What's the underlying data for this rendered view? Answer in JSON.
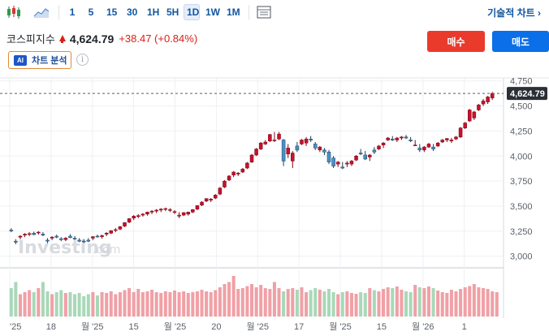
{
  "toolbar": {
    "timeframes": [
      "1",
      "5",
      "15",
      "30",
      "1H",
      "5H",
      "1D",
      "1W",
      "1M"
    ],
    "active_timeframe": "1D",
    "technical_chart_label": "기술적 차트 ›"
  },
  "quote": {
    "name": "코스피지수",
    "price": "4,624.79",
    "change": "+38.47 (+0.84%)",
    "change_color": "#d91e18"
  },
  "actions": {
    "buy_label": "매수",
    "sell_label": "매도",
    "buy_color": "#ea3a2c",
    "sell_color": "#0a6fe8"
  },
  "ai": {
    "badge": "AI",
    "label": "차트 분석"
  },
  "watermark": {
    "brand": "Investing",
    "domain": ".com"
  },
  "chart_data": {
    "type": "candlestick",
    "up_color": "#c8102e",
    "down_color": "#4a90c8",
    "ylim": [
      2900,
      4780
    ],
    "y_ticks": [
      3000,
      3250,
      3500,
      3750,
      4000,
      4250,
      4500,
      4750
    ],
    "y_tick_labels": [
      "3,000",
      "3,250",
      "3,500",
      "3,750",
      "4,000",
      "4,250",
      "4,500",
      "4,750"
    ],
    "x_tick_labels": [
      "'25",
      "18",
      "월 '25",
      "15",
      "월 '25",
      "20",
      "월 '25",
      "17",
      "월 '25",
      "15",
      "월 '26",
      "1"
    ],
    "last_price": 4624.79,
    "last_price_label": "4,624.79",
    "volume_colors": {
      "up": "#f0a0a6",
      "down": "#a8d8b8"
    },
    "candles": [
      [
        3260,
        3280,
        3240,
        3255
      ],
      [
        3150,
        3170,
        3120,
        3140
      ],
      [
        3190,
        3210,
        3170,
        3200
      ],
      [
        3210,
        3230,
        3190,
        3220
      ],
      [
        3220,
        3240,
        3200,
        3225
      ],
      [
        3230,
        3245,
        3210,
        3215
      ],
      [
        3235,
        3250,
        3215,
        3240
      ],
      [
        3220,
        3240,
        3200,
        3210
      ],
      [
        3160,
        3180,
        3130,
        3150
      ],
      [
        3180,
        3200,
        3160,
        3190
      ],
      [
        3200,
        3215,
        3180,
        3190
      ],
      [
        3175,
        3190,
        3150,
        3165
      ],
      [
        3165,
        3190,
        3150,
        3180
      ],
      [
        3200,
        3220,
        3180,
        3185
      ],
      [
        3180,
        3200,
        3160,
        3175
      ],
      [
        3160,
        3180,
        3140,
        3150
      ],
      [
        3150,
        3170,
        3130,
        3145
      ],
      [
        3160,
        3180,
        3140,
        3150
      ],
      [
        3180,
        3200,
        3160,
        3195
      ],
      [
        3200,
        3215,
        3185,
        3195
      ],
      [
        3195,
        3215,
        3175,
        3205
      ],
      [
        3220,
        3240,
        3200,
        3230
      ],
      [
        3230,
        3260,
        3220,
        3255
      ],
      [
        3260,
        3280,
        3240,
        3265
      ],
      [
        3270,
        3300,
        3260,
        3295
      ],
      [
        3300,
        3340,
        3290,
        3335
      ],
      [
        3340,
        3380,
        3330,
        3375
      ],
      [
        3380,
        3410,
        3360,
        3400
      ],
      [
        3395,
        3420,
        3380,
        3405
      ],
      [
        3410,
        3430,
        3395,
        3420
      ],
      [
        3420,
        3445,
        3405,
        3440
      ],
      [
        3440,
        3460,
        3420,
        3450
      ],
      [
        3450,
        3470,
        3430,
        3460
      ],
      [
        3460,
        3480,
        3440,
        3470
      ],
      [
        3470,
        3485,
        3450,
        3475
      ],
      [
        3460,
        3480,
        3440,
        3465
      ],
      [
        3440,
        3460,
        3420,
        3445
      ],
      [
        3400,
        3440,
        3380,
        3410
      ],
      [
        3410,
        3440,
        3400,
        3435
      ],
      [
        3420,
        3445,
        3405,
        3440
      ],
      [
        3440,
        3470,
        3430,
        3465
      ],
      [
        3470,
        3510,
        3460,
        3505
      ],
      [
        3510,
        3550,
        3500,
        3540
      ],
      [
        3550,
        3580,
        3540,
        3575
      ],
      [
        3560,
        3580,
        3540,
        3570
      ],
      [
        3580,
        3620,
        3570,
        3610
      ],
      [
        3620,
        3690,
        3610,
        3680
      ],
      [
        3690,
        3760,
        3680,
        3750
      ],
      [
        3760,
        3810,
        3750,
        3800
      ],
      [
        3810,
        3850,
        3790,
        3840
      ],
      [
        3820,
        3840,
        3800,
        3830
      ],
      [
        3840,
        3880,
        3830,
        3870
      ],
      [
        3880,
        3940,
        3870,
        3930
      ],
      [
        3940,
        4020,
        3930,
        4010
      ],
      [
        4010,
        4080,
        4000,
        4070
      ],
      [
        4070,
        4140,
        4060,
        4130
      ],
      [
        4120,
        4160,
        4110,
        4140
      ],
      [
        4150,
        4220,
        4140,
        4215
      ],
      [
        4160,
        4240,
        4140,
        4160
      ],
      [
        4170,
        4240,
        4160,
        4220
      ],
      [
        4160,
        4170,
        3900,
        3950
      ],
      [
        4020,
        4120,
        3980,
        4080
      ],
      [
        3950,
        4050,
        3880,
        4030
      ],
      [
        4100,
        4140,
        4040,
        4060
      ],
      [
        4120,
        4170,
        4110,
        4160
      ],
      [
        4130,
        4190,
        4100,
        4170
      ],
      [
        4170,
        4200,
        4140,
        4160
      ],
      [
        4120,
        4140,
        4060,
        4080
      ],
      [
        4060,
        4100,
        4040,
        4090
      ],
      [
        4060,
        4080,
        4010,
        4040
      ],
      [
        4040,
        4060,
        3920,
        3940
      ],
      [
        3980,
        4000,
        3880,
        3900
      ],
      [
        3920,
        3950,
        3890,
        3940
      ],
      [
        3890,
        3940,
        3870,
        3880
      ],
      [
        3920,
        3950,
        3890,
        3930
      ],
      [
        3920,
        3960,
        3900,
        3950
      ],
      [
        3960,
        4010,
        3950,
        4000
      ],
      [
        4030,
        4070,
        4010,
        4020
      ],
      [
        4010,
        4050,
        3960,
        3970
      ],
      [
        3990,
        4020,
        3950,
        4010
      ],
      [
        4060,
        4090,
        4020,
        4040
      ],
      [
        4070,
        4110,
        4060,
        4100
      ],
      [
        4110,
        4140,
        4080,
        4130
      ],
      [
        4160,
        4190,
        4150,
        4180
      ],
      [
        4170,
        4200,
        4150,
        4160
      ],
      [
        4160,
        4190,
        4140,
        4180
      ],
      [
        4180,
        4200,
        4160,
        4190
      ],
      [
        4190,
        4210,
        4170,
        4180
      ],
      [
        4160,
        4190,
        4140,
        4150
      ],
      [
        4110,
        4160,
        4100,
        4110
      ],
      [
        4080,
        4120,
        4040,
        4060
      ],
      [
        4060,
        4100,
        4040,
        4090
      ],
      [
        4090,
        4130,
        4080,
        4120
      ],
      [
        4090,
        4120,
        4050,
        4070
      ],
      [
        4100,
        4140,
        4090,
        4130
      ],
      [
        4140,
        4170,
        4130,
        4160
      ],
      [
        4160,
        4180,
        4140,
        4175
      ],
      [
        4150,
        4180,
        4130,
        4160
      ],
      [
        4170,
        4200,
        4160,
        4190
      ],
      [
        4190,
        4290,
        4180,
        4280
      ],
      [
        4280,
        4340,
        4270,
        4330
      ],
      [
        4350,
        4470,
        4340,
        4460
      ],
      [
        4380,
        4450,
        4360,
        4440
      ],
      [
        4460,
        4520,
        4450,
        4510
      ],
      [
        4520,
        4570,
        4500,
        4550
      ],
      [
        4540,
        4600,
        4520,
        4590
      ],
      [
        4580,
        4640,
        4560,
        4625
      ]
    ],
    "volumes": [
      0.7,
      0.85,
      0.55,
      0.6,
      0.65,
      0.6,
      0.7,
      0.85,
      0.62,
      0.55,
      0.6,
      0.65,
      0.58,
      0.6,
      0.55,
      0.58,
      0.5,
      0.55,
      0.6,
      0.52,
      0.6,
      0.58,
      0.62,
      0.55,
      0.6,
      0.65,
      0.7,
      0.6,
      0.68,
      0.6,
      0.62,
      0.66,
      0.6,
      0.58,
      0.62,
      0.6,
      0.64,
      0.6,
      0.62,
      0.58,
      0.6,
      0.62,
      0.66,
      0.62,
      0.6,
      0.65,
      0.72,
      0.8,
      0.85,
      1.0,
      0.68,
      0.7,
      0.75,
      0.8,
      0.72,
      0.78,
      0.7,
      0.68,
      0.85,
      0.7,
      0.62,
      0.68,
      0.7,
      0.66,
      0.72,
      0.6,
      0.65,
      0.7,
      0.66,
      0.62,
      0.68,
      0.6,
      0.55,
      0.6,
      0.62,
      0.58,
      0.56,
      0.6,
      0.58,
      0.7,
      0.65,
      0.62,
      0.68,
      0.72,
      0.7,
      0.74,
      0.66,
      0.62,
      0.6,
      0.78,
      0.72,
      0.7,
      0.74,
      0.7,
      0.64,
      0.6,
      0.58,
      0.66,
      0.62,
      0.68,
      0.72,
      0.75,
      0.8,
      0.72,
      0.7,
      0.68,
      0.62,
      0.6
    ]
  }
}
